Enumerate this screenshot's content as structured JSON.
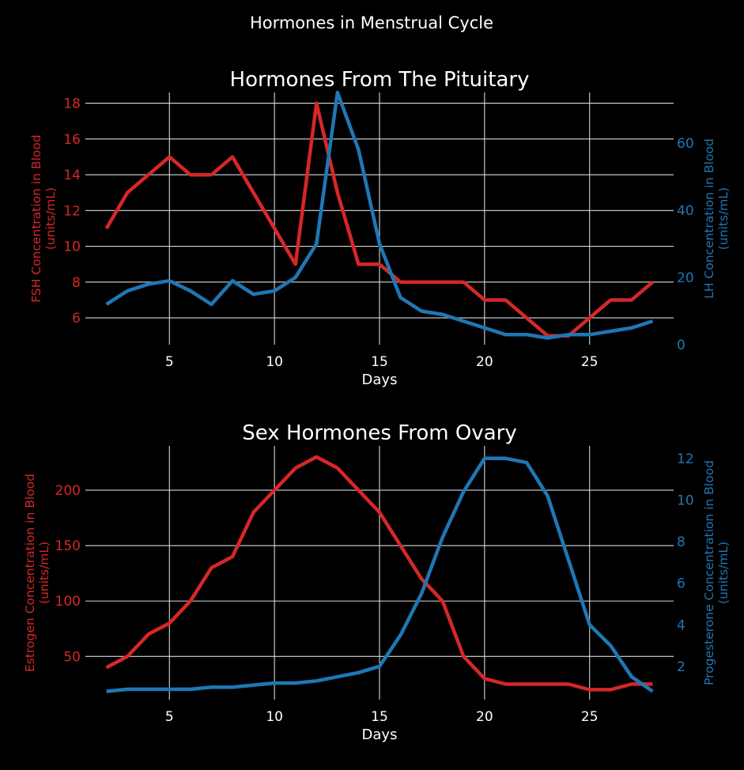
{
  "figure": {
    "suptitle": "Hormones in Menstrual Cycle",
    "background": "#000000",
    "foreground": "#ffffff",
    "color_left": "#d62728",
    "color_right": "#1f77b4"
  },
  "chart_data": [
    {
      "type": "line",
      "title": "Hormones From The Pituitary",
      "xlabel": "Days",
      "ylabel_left": "FSH Concentration in Blood\n(units/mL)",
      "ylabel_right": "LH Concentration in Blood\n(units/mL)",
      "xlim": [
        1,
        29
      ],
      "ylim_left": [
        4.5,
        18.6
      ],
      "ylim_right": [
        0,
        75
      ],
      "xticks": [
        5,
        10,
        15,
        20,
        25
      ],
      "yticks_left": [
        6,
        8,
        10,
        12,
        14,
        16,
        18
      ],
      "yticks_right": [
        0,
        20,
        40,
        60
      ],
      "grid": "left-axis",
      "x": [
        2,
        3,
        4,
        5,
        6,
        7,
        8,
        9,
        10,
        11,
        12,
        13,
        14,
        15,
        16,
        17,
        18,
        19,
        20,
        21,
        22,
        23,
        24,
        25,
        26,
        27,
        28
      ],
      "series": [
        {
          "name": "FSH",
          "axis": "left",
          "color": "#d62728",
          "values": [
            11,
            13,
            14,
            15,
            14,
            14,
            15,
            13,
            11,
            9,
            18,
            13,
            9,
            9,
            8,
            8,
            8,
            8,
            7,
            7,
            6,
            5,
            5,
            6,
            7,
            7,
            8
          ]
        },
        {
          "name": "LH",
          "axis": "right",
          "color": "#1f77b4",
          "values": [
            12,
            16,
            18,
            19,
            16,
            12,
            19,
            15,
            16,
            20,
            30,
            75,
            58,
            30,
            14,
            10,
            9,
            7,
            5,
            3,
            3,
            2,
            3,
            3,
            4,
            5,
            7
          ]
        }
      ]
    },
    {
      "type": "line",
      "title": "Sex Hormones From Ovary",
      "xlabel": "Days",
      "ylabel_left": "Estrogen Concentration in Blood\n(units/mL)",
      "ylabel_right": "Progesterone Concentration in Blood\n(units/mL)",
      "xlim": [
        1,
        29
      ],
      "ylim_left": [
        11,
        240
      ],
      "ylim_right": [
        0.4,
        12.6
      ],
      "xticks": [
        5,
        10,
        15,
        20,
        25
      ],
      "yticks_left": [
        50,
        100,
        150,
        200
      ],
      "yticks_right": [
        2,
        4,
        6,
        8,
        10,
        12
      ],
      "grid": "left-axis",
      "x": [
        2,
        3,
        4,
        5,
        6,
        7,
        8,
        9,
        10,
        11,
        12,
        13,
        14,
        15,
        16,
        17,
        18,
        19,
        20,
        21,
        22,
        23,
        24,
        25,
        26,
        27,
        28
      ],
      "series": [
        {
          "name": "Estrogen",
          "axis": "left",
          "color": "#d62728",
          "values": [
            40,
            50,
            70,
            80,
            100,
            130,
            140,
            180,
            200,
            220,
            230,
            220,
            200,
            180,
            150,
            120,
            100,
            50,
            30,
            25,
            25,
            25,
            25,
            20,
            20,
            25,
            25
          ]
        },
        {
          "name": "Progesterone",
          "axis": "right",
          "color": "#1f77b4",
          "values": [
            0.8,
            0.9,
            0.9,
            0.9,
            0.9,
            1.0,
            1.0,
            1.1,
            1.2,
            1.2,
            1.3,
            1.5,
            1.7,
            2.0,
            3.5,
            5.5,
            8.2,
            10.4,
            12.0,
            12.0,
            11.8,
            10.2,
            7.1,
            4.0,
            3.0,
            1.5,
            0.8
          ]
        }
      ]
    }
  ]
}
